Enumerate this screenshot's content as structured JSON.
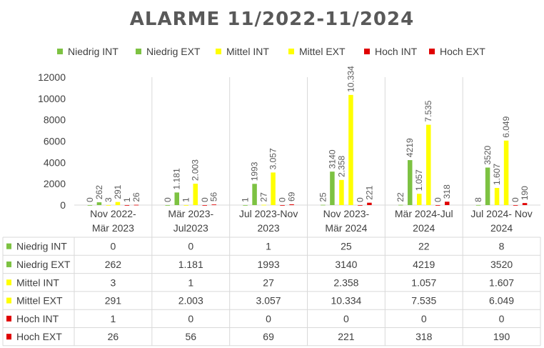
{
  "chart_data": {
    "type": "bar",
    "title": "ALARME 11/2022-11/2024",
    "categories": [
      [
        "Nov 2022-",
        "Mär 2023"
      ],
      [
        "Mär 2023-",
        "Jul2023"
      ],
      [
        "Jul 2023-Nov",
        "2023"
      ],
      [
        "Nov 2023-",
        "Mär 2024"
      ],
      [
        "Mär 2024-Jul",
        "2024"
      ],
      [
        "Jul 2024- Nov",
        "2024"
      ]
    ],
    "ylim": [
      0,
      12000
    ],
    "yticks": [
      "0",
      "2000",
      "4000",
      "6000",
      "8000",
      "10000",
      "12000"
    ],
    "ytick_values": [
      0,
      2000,
      4000,
      6000,
      8000,
      10000,
      12000
    ],
    "grid": true,
    "legend_position": "top",
    "series": [
      {
        "name": "Niedrig INT",
        "color": "#7dc242",
        "values": [
          0,
          0,
          1,
          25,
          22,
          8
        ],
        "labels": [
          "0",
          "0",
          "1",
          "25",
          "22",
          "8"
        ]
      },
      {
        "name": "Niedrig EXT",
        "color": "#7dc242",
        "values": [
          262,
          1181,
          1993,
          3140,
          4219,
          3520
        ],
        "labels": [
          "262",
          "1.181",
          "1993",
          "3140",
          "4219",
          "3520"
        ]
      },
      {
        "name": "Mittel INT",
        "color": "#ffff00",
        "values": [
          3,
          1,
          27,
          2358,
          1057,
          1607
        ],
        "labels": [
          "3",
          "1",
          "27",
          "2.358",
          "1.057",
          "1.607"
        ]
      },
      {
        "name": "Mittel EXT",
        "color": "#ffff00",
        "values": [
          291,
          2003,
          3057,
          10334,
          7535,
          6049
        ],
        "labels": [
          "291",
          "2.003",
          "3.057",
          "10.334",
          "7.535",
          "6.049"
        ]
      },
      {
        "name": "Hoch INT",
        "color": "#e00000",
        "values": [
          1,
          0,
          0,
          0,
          0,
          0
        ],
        "labels": [
          "1",
          "0",
          "0",
          "0",
          "0",
          "0"
        ]
      },
      {
        "name": "Hoch EXT",
        "color": "#e00000",
        "values": [
          26,
          56,
          69,
          221,
          318,
          190
        ],
        "labels": [
          "26",
          "56",
          "69",
          "221",
          "318",
          "190"
        ]
      }
    ]
  }
}
